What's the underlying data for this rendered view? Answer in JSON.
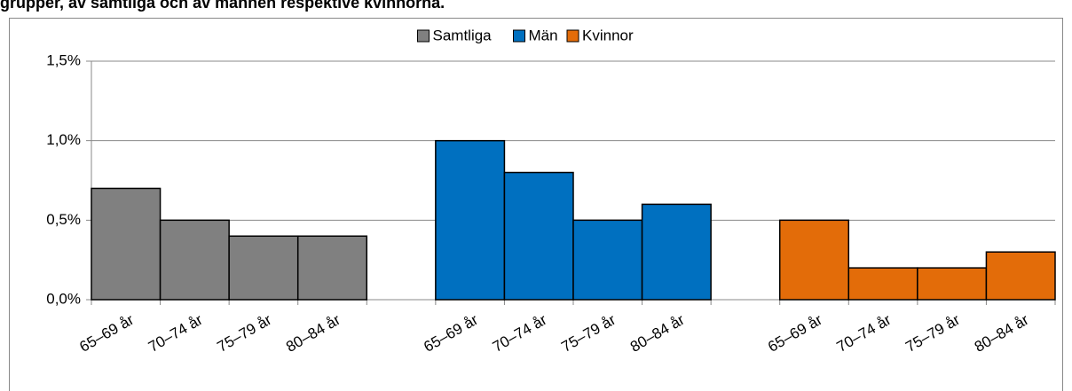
{
  "chart_data": {
    "type": "bar",
    "title": "grupper, av samtliga och av männen respektive kvinnorna.",
    "categories": [
      "65–69 år",
      "70–74 år",
      "75–79 år",
      "80–84 år",
      null,
      "65–69 år",
      "70–74 år",
      "75–79 år",
      "80–84 år",
      null,
      "65–69 år",
      "70–74 år",
      "75–79 år",
      "80–84 år"
    ],
    "series": [
      {
        "name": "Samtliga",
        "color": "#808080",
        "values": [
          0.7,
          0.5,
          0.4,
          0.4,
          null,
          null,
          null,
          null,
          null,
          null,
          null,
          null,
          null,
          null
        ]
      },
      {
        "name": "Män",
        "color": "#0070c0",
        "values": [
          null,
          null,
          null,
          null,
          null,
          1.0,
          0.8,
          0.5,
          0.6,
          null,
          null,
          null,
          null,
          null
        ]
      },
      {
        "name": "Kvinnor",
        "color": "#e36c09",
        "values": [
          null,
          null,
          null,
          null,
          null,
          null,
          null,
          null,
          null,
          null,
          0.5,
          0.2,
          0.2,
          0.3
        ]
      }
    ],
    "ylim": [
      0,
      1.5
    ],
    "yticks": [
      {
        "value": 0,
        "label": "0,0%"
      },
      {
        "value": 0.5,
        "label": "0,5%"
      },
      {
        "value": 1.0,
        "label": "1,0%"
      },
      {
        "value": 1.5,
        "label": "1,5%"
      }
    ],
    "grid": true,
    "legend": "top"
  }
}
